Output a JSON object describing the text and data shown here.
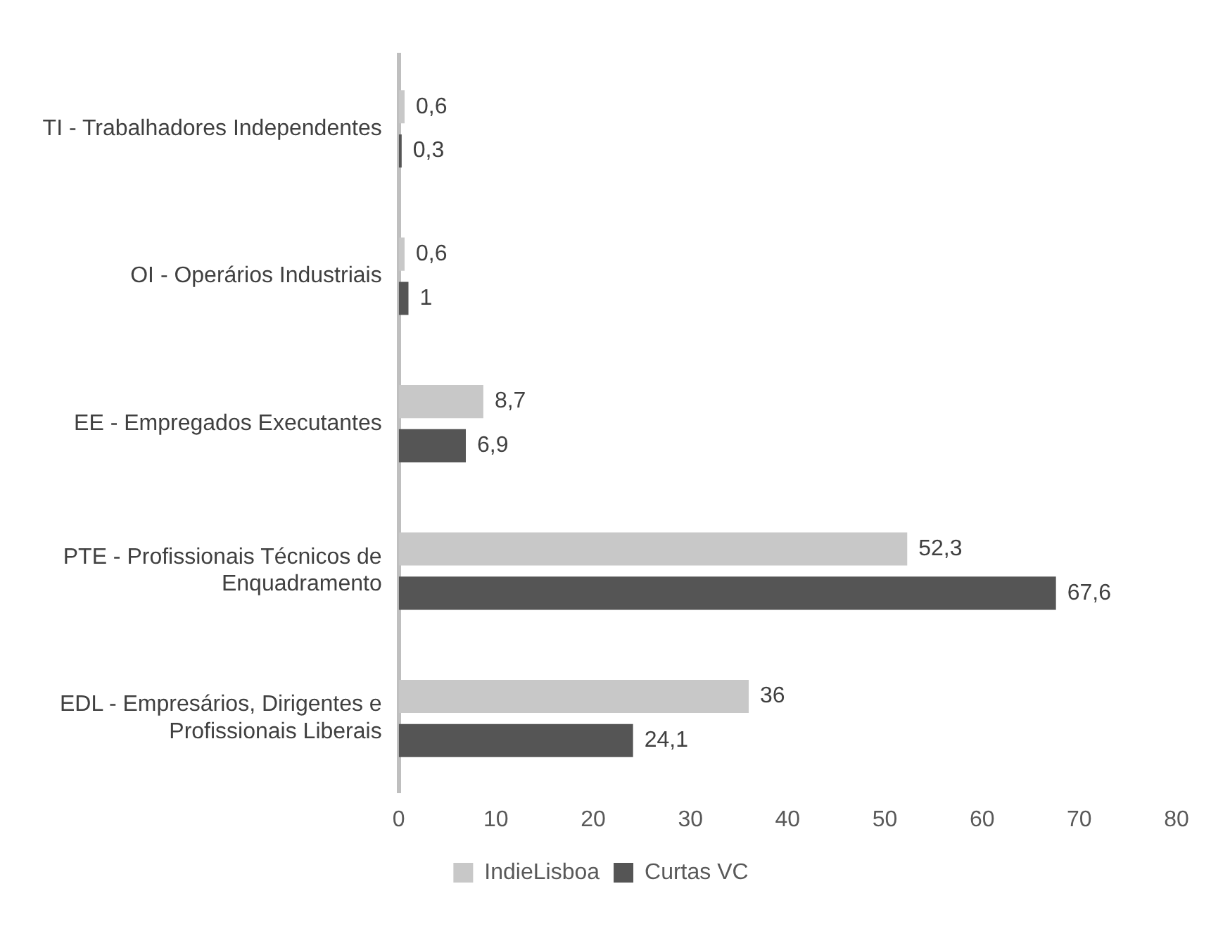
{
  "chart_data": {
    "type": "bar",
    "orientation": "horizontal",
    "categories": [
      "TI - Trabalhadores Independentes",
      "OI - Operários Industriais",
      "EE - Empregados Executantes",
      "PTE - Profissionais Técnicos de Enquadramento",
      "EDL - Empresários, Dirigentes e Profissionais Liberais"
    ],
    "series": [
      {
        "name": "IndieLisboa",
        "color": "#c8c8c8",
        "values": [
          0.6,
          0.6,
          8.7,
          52.3,
          36
        ],
        "value_labels": [
          "0,6",
          "0,6",
          "8,7",
          "52,3",
          "36"
        ]
      },
      {
        "name": "Curtas VC",
        "color": "#555555",
        "values": [
          0.3,
          1,
          6.9,
          67.6,
          24.1
        ],
        "value_labels": [
          "0,3",
          "1",
          "6,9",
          "67,6",
          "24,1"
        ]
      }
    ],
    "xlim": [
      0,
      80
    ],
    "xticks": [
      0,
      10,
      20,
      30,
      40,
      50,
      60,
      70,
      80
    ],
    "grid": false,
    "legend": "bottom"
  }
}
